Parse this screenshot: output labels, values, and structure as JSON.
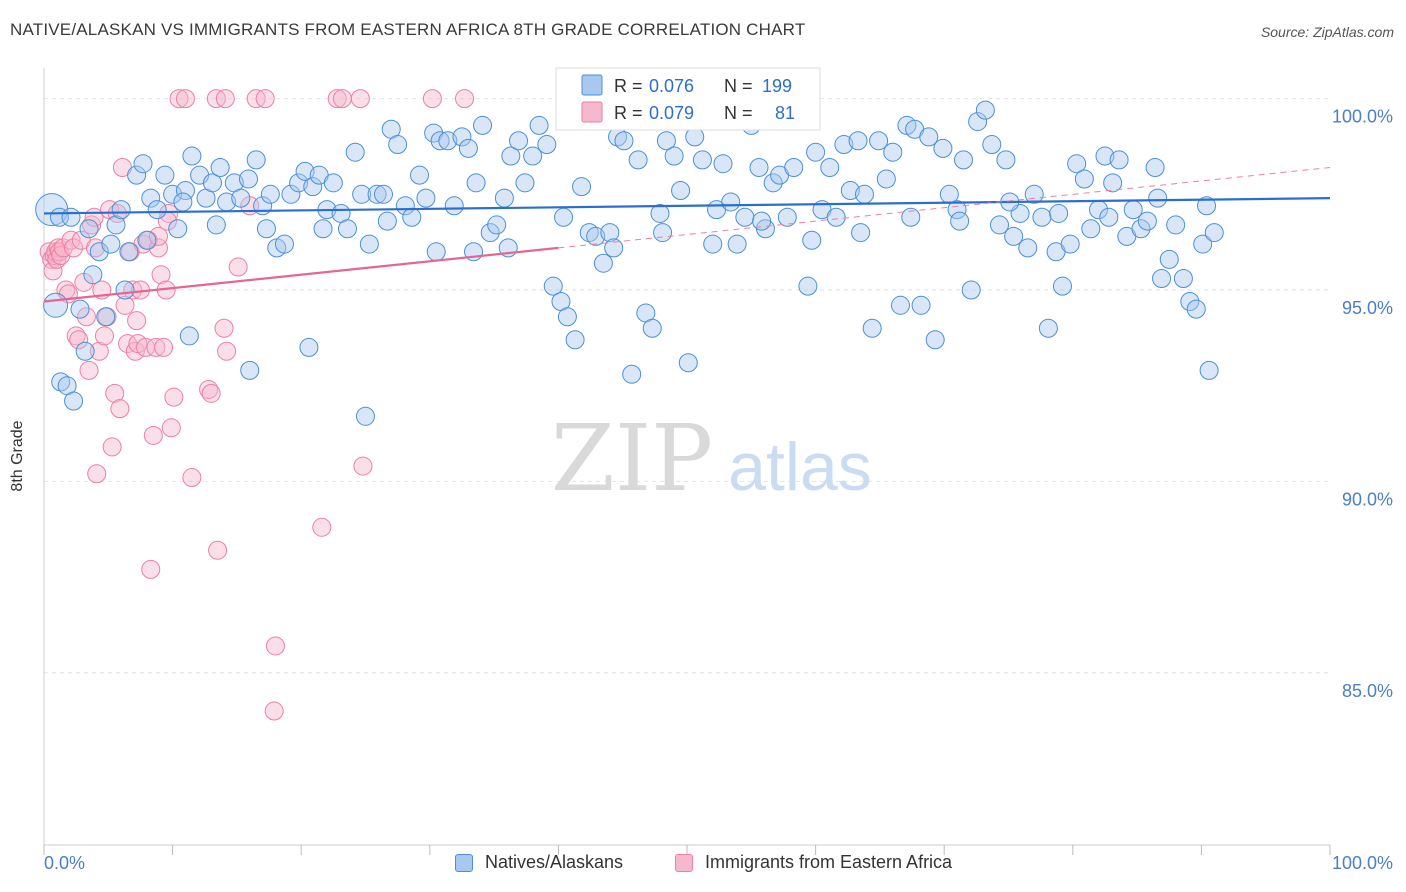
{
  "header": {
    "title": "NATIVE/ALASKAN VS IMMIGRANTS FROM EASTERN AFRICA 8TH GRADE CORRELATION CHART",
    "source": "Source: ZipAtlas.com"
  },
  "watermark": {
    "zip": "ZIP",
    "atlas": "atlas"
  },
  "colors": {
    "blue": "#4a90d9",
    "blue_fill": "#a9c8ef",
    "blue_line": "#2a6fd0",
    "pink": "#ee7fa3",
    "pink_fill": "#f6b8cc",
    "pink_line": "#e56690",
    "tick_text": "#4a7fc8"
  },
  "legend": {
    "rows": [
      {
        "r_label": "R =",
        "r_value": "0.076",
        "n_label": "N =",
        "n_value": "199"
      },
      {
        "r_label": "R =",
        "r_value": "0.079",
        "n_label": "N =",
        "n_value": "81"
      }
    ]
  },
  "bottom_legend": {
    "series1": "Natives/Alaskans",
    "series2": "Immigrants from Eastern Africa"
  },
  "chart_data": {
    "type": "scatter",
    "title": "NATIVE/ALASKAN VS IMMIGRANTS FROM EASTERN AFRICA 8TH GRADE CORRELATION CHART",
    "ylabel": "8th Grade",
    "xlabel": "",
    "x_tick_labels": [
      "0.0%",
      "100.0%"
    ],
    "y_tick_labels": [
      "100.0%",
      "95.0%",
      "90.0%",
      "85.0%"
    ],
    "y_ticks": [
      100,
      95,
      90,
      85
    ],
    "xlim": [
      0,
      100
    ],
    "ylim": [
      80.5,
      100.8
    ],
    "grid": true,
    "legend_position": "top-center",
    "series": [
      {
        "name": "Natives/Alaskans",
        "r": 0.076,
        "n": 199,
        "trend": {
          "x": [
            0,
            100
          ],
          "y": [
            97.0,
            97.4
          ],
          "style": "solid"
        },
        "points": [
          [
            0.6,
            97.1
          ],
          [
            0.9,
            94.6
          ],
          [
            1.3,
            92.6
          ],
          [
            1.8,
            92.5
          ],
          [
            2.3,
            92.1
          ],
          [
            2.8,
            94.5
          ],
          [
            3.2,
            93.4
          ],
          [
            3.8,
            95.4
          ],
          [
            4.3,
            96.0
          ],
          [
            5.2,
            96.2
          ],
          [
            5.6,
            96.7
          ],
          [
            6.0,
            97.1
          ],
          [
            6.6,
            96.0
          ],
          [
            7.2,
            98.0
          ],
          [
            7.7,
            98.3
          ],
          [
            8.3,
            97.4
          ],
          [
            8.8,
            97.1
          ],
          [
            9.4,
            98.0
          ],
          [
            10.0,
            97.5
          ],
          [
            10.4,
            96.6
          ],
          [
            11.0,
            97.6
          ],
          [
            11.5,
            98.5
          ],
          [
            12.1,
            98.0
          ],
          [
            12.6,
            97.4
          ],
          [
            13.1,
            97.8
          ],
          [
            13.7,
            98.2
          ],
          [
            14.2,
            97.3
          ],
          [
            14.8,
            97.8
          ],
          [
            15.3,
            97.4
          ],
          [
            15.9,
            97.9
          ],
          [
            16.5,
            98.4
          ],
          [
            17.0,
            97.2
          ],
          [
            17.6,
            97.5
          ],
          [
            18.1,
            96.1
          ],
          [
            18.7,
            96.2
          ],
          [
            19.2,
            97.5
          ],
          [
            19.8,
            97.8
          ],
          [
            20.3,
            98.1
          ],
          [
            20.9,
            97.7
          ],
          [
            21.4,
            98.0
          ],
          [
            22.0,
            97.1
          ],
          [
            22.5,
            97.8
          ],
          [
            23.1,
            97.0
          ],
          [
            23.6,
            96.6
          ],
          [
            24.2,
            98.6
          ],
          [
            24.7,
            97.5
          ],
          [
            25.3,
            96.2
          ],
          [
            25.9,
            97.5
          ],
          [
            26.4,
            97.5
          ],
          [
            27.0,
            99.2
          ],
          [
            27.5,
            98.8
          ],
          [
            28.1,
            97.2
          ],
          [
            28.6,
            96.9
          ],
          [
            29.2,
            98.0
          ],
          [
            29.7,
            97.4
          ],
          [
            30.3,
            99.1
          ],
          [
            30.8,
            98.9
          ],
          [
            31.4,
            98.9
          ],
          [
            31.9,
            97.2
          ],
          [
            32.5,
            99.0
          ],
          [
            33.0,
            98.7
          ],
          [
            33.6,
            97.8
          ],
          [
            34.1,
            99.3
          ],
          [
            34.7,
            96.5
          ],
          [
            35.2,
            96.7
          ],
          [
            35.8,
            97.4
          ],
          [
            36.3,
            98.5
          ],
          [
            36.9,
            98.9
          ],
          [
            37.4,
            97.8
          ],
          [
            38.0,
            98.5
          ],
          [
            38.5,
            99.3
          ],
          [
            39.1,
            98.8
          ],
          [
            39.6,
            95.1
          ],
          [
            40.2,
            94.7
          ],
          [
            40.7,
            94.3
          ],
          [
            41.3,
            93.7
          ],
          [
            41.8,
            97.7
          ],
          [
            42.4,
            96.5
          ],
          [
            42.9,
            96.4
          ],
          [
            43.5,
            95.7
          ],
          [
            44.0,
            96.5
          ],
          [
            44.6,
            99.0
          ],
          [
            45.1,
            98.9
          ],
          [
            45.7,
            92.8
          ],
          [
            46.2,
            98.4
          ],
          [
            46.8,
            94.4
          ],
          [
            47.3,
            94.0
          ],
          [
            47.9,
            97.0
          ],
          [
            48.4,
            98.9
          ],
          [
            49.0,
            98.5
          ],
          [
            49.5,
            97.6
          ],
          [
            50.1,
            93.1
          ],
          [
            50.6,
            99.0
          ],
          [
            51.2,
            98.4
          ],
          [
            51.7,
            99.5
          ],
          [
            52.3,
            97.1
          ],
          [
            52.8,
            98.3
          ],
          [
            53.4,
            97.3
          ],
          [
            53.9,
            96.2
          ],
          [
            54.5,
            96.9
          ],
          [
            55.0,
            99.3
          ],
          [
            55.6,
            98.2
          ],
          [
            56.1,
            96.6
          ],
          [
            56.7,
            97.8
          ],
          [
            57.2,
            98.0
          ],
          [
            57.8,
            96.9
          ],
          [
            58.3,
            98.2
          ],
          [
            58.9,
            99.6
          ],
          [
            59.4,
            95.1
          ],
          [
            60.0,
            98.6
          ],
          [
            60.5,
            97.1
          ],
          [
            61.1,
            98.2
          ],
          [
            61.6,
            96.9
          ],
          [
            62.2,
            98.8
          ],
          [
            62.7,
            97.6
          ],
          [
            63.3,
            98.9
          ],
          [
            63.8,
            97.5
          ],
          [
            64.4,
            94.0
          ],
          [
            64.9,
            98.9
          ],
          [
            65.5,
            97.9
          ],
          [
            66.0,
            98.6
          ],
          [
            66.6,
            94.6
          ],
          [
            67.1,
            99.3
          ],
          [
            67.7,
            99.2
          ],
          [
            68.2,
            94.6
          ],
          [
            68.8,
            99.0
          ],
          [
            69.3,
            93.7
          ],
          [
            69.9,
            98.7
          ],
          [
            70.4,
            97.5
          ],
          [
            71.0,
            97.1
          ],
          [
            71.5,
            98.4
          ],
          [
            72.1,
            95.0
          ],
          [
            72.6,
            99.4
          ],
          [
            73.2,
            99.7
          ],
          [
            73.7,
            98.8
          ],
          [
            74.3,
            96.7
          ],
          [
            74.8,
            98.4
          ],
          [
            75.4,
            96.4
          ],
          [
            75.9,
            97.0
          ],
          [
            76.5,
            96.1
          ],
          [
            77.0,
            97.5
          ],
          [
            77.6,
            96.9
          ],
          [
            78.1,
            94.0
          ],
          [
            78.7,
            96.0
          ],
          [
            79.2,
            95.1
          ],
          [
            79.8,
            96.2
          ],
          [
            80.3,
            98.3
          ],
          [
            80.9,
            97.9
          ],
          [
            81.4,
            96.6
          ],
          [
            82.0,
            97.1
          ],
          [
            82.5,
            98.5
          ],
          [
            83.1,
            97.8
          ],
          [
            83.6,
            98.4
          ],
          [
            84.2,
            96.4
          ],
          [
            84.7,
            97.1
          ],
          [
            85.3,
            96.6
          ],
          [
            85.8,
            96.8
          ],
          [
            86.4,
            98.2
          ],
          [
            86.9,
            95.3
          ],
          [
            87.5,
            95.8
          ],
          [
            88.0,
            96.7
          ],
          [
            88.6,
            95.3
          ],
          [
            89.1,
            94.7
          ],
          [
            89.6,
            94.5
          ],
          [
            90.1,
            96.2
          ],
          [
            90.6,
            92.9
          ],
          [
            91.0,
            96.5
          ],
          [
            6.3,
            95.0
          ],
          [
            1.2,
            96.9
          ],
          [
            2.1,
            96.9
          ],
          [
            3.5,
            96.6
          ],
          [
            4.8,
            94.3
          ],
          [
            8.0,
            96.3
          ],
          [
            10.8,
            97.3
          ],
          [
            13.4,
            96.7
          ],
          [
            17.3,
            96.6
          ],
          [
            21.7,
            96.6
          ],
          [
            26.7,
            96.8
          ],
          [
            30.5,
            96.0
          ],
          [
            33.4,
            96.0
          ],
          [
            36.1,
            96.1
          ],
          [
            40.4,
            96.9
          ],
          [
            44.3,
            96.1
          ],
          [
            48.1,
            96.5
          ],
          [
            52.0,
            96.2
          ],
          [
            55.8,
            96.8
          ],
          [
            59.7,
            96.3
          ],
          [
            63.5,
            96.5
          ],
          [
            67.4,
            96.9
          ],
          [
            71.2,
            96.8
          ],
          [
            75.1,
            97.3
          ],
          [
            78.9,
            97.0
          ],
          [
            82.8,
            96.9
          ],
          [
            86.6,
            97.4
          ],
          [
            90.4,
            97.2
          ],
          [
            11.3,
            93.8
          ],
          [
            16.0,
            92.9
          ],
          [
            20.6,
            93.5
          ],
          [
            25.0,
            91.7
          ]
        ]
      },
      {
        "name": "Immigrants from Eastern Africa",
        "r": 0.079,
        "n": 81,
        "trend": {
          "x": [
            0,
            40
          ],
          "y": [
            94.7,
            96.1
          ],
          "style": "solid",
          "extended_x": [
            40,
            100
          ],
          "extended_y": [
            96.1,
            98.2
          ],
          "extended_style": "dashed"
        },
        "points": [
          [
            0.4,
            96.0
          ],
          [
            0.6,
            95.8
          ],
          [
            0.7,
            95.5
          ],
          [
            0.8,
            95.9
          ],
          [
            0.9,
            96.0
          ],
          [
            1.0,
            95.8
          ],
          [
            1.1,
            96.1
          ],
          [
            1.2,
            96.0
          ],
          [
            1.3,
            95.9
          ],
          [
            1.5,
            96.1
          ],
          [
            1.7,
            95.0
          ],
          [
            1.9,
            94.9
          ],
          [
            2.1,
            96.3
          ],
          [
            2.3,
            96.1
          ],
          [
            2.5,
            93.8
          ],
          [
            2.7,
            93.7
          ],
          [
            2.9,
            96.3
          ],
          [
            3.1,
            95.2
          ],
          [
            3.3,
            94.3
          ],
          [
            3.5,
            92.9
          ],
          [
            3.7,
            96.7
          ],
          [
            3.9,
            96.9
          ],
          [
            4.1,
            90.2
          ],
          [
            4.3,
            93.4
          ],
          [
            4.5,
            95.0
          ],
          [
            4.7,
            93.8
          ],
          [
            4.9,
            94.3
          ],
          [
            5.1,
            97.1
          ],
          [
            5.3,
            90.9
          ],
          [
            5.5,
            92.3
          ],
          [
            5.7,
            97.0
          ],
          [
            5.9,
            91.9
          ],
          [
            6.1,
            98.2
          ],
          [
            6.3,
            94.6
          ],
          [
            6.5,
            93.6
          ],
          [
            6.7,
            96.0
          ],
          [
            6.9,
            95.0
          ],
          [
            7.1,
            93.4
          ],
          [
            7.3,
            93.6
          ],
          [
            7.5,
            95.0
          ],
          [
            7.7,
            96.2
          ],
          [
            7.9,
            93.5
          ],
          [
            8.1,
            96.3
          ],
          [
            8.3,
            87.7
          ],
          [
            8.5,
            91.2
          ],
          [
            8.7,
            93.5
          ],
          [
            8.9,
            96.1
          ],
          [
            9.1,
            95.4
          ],
          [
            9.3,
            93.5
          ],
          [
            9.5,
            95.0
          ],
          [
            9.7,
            97.0
          ],
          [
            9.9,
            91.4
          ],
          [
            10.1,
            92.2
          ],
          [
            10.5,
            100.0
          ],
          [
            11.0,
            100.0
          ],
          [
            11.5,
            90.1
          ],
          [
            12.8,
            92.4
          ],
          [
            13.0,
            92.3
          ],
          [
            13.5,
            88.2
          ],
          [
            14.0,
            94.0
          ],
          [
            14.2,
            93.4
          ],
          [
            15.1,
            95.6
          ],
          [
            16.0,
            97.2
          ],
          [
            18.0,
            85.7
          ],
          [
            17.9,
            84.0
          ],
          [
            16.5,
            100.0
          ],
          [
            17.2,
            100.0
          ],
          [
            21.6,
            88.8
          ],
          [
            22.8,
            100.0
          ],
          [
            23.2,
            100.0
          ],
          [
            24.6,
            100.0
          ],
          [
            24.8,
            90.4
          ],
          [
            30.2,
            100.0
          ],
          [
            32.7,
            100.0
          ],
          [
            42.0,
            100.0
          ],
          [
            13.4,
            100.0
          ],
          [
            14.1,
            100.0
          ],
          [
            8.9,
            96.4
          ],
          [
            4.0,
            96.1
          ],
          [
            7.2,
            94.2
          ],
          [
            9.6,
            96.8
          ]
        ]
      }
    ]
  }
}
